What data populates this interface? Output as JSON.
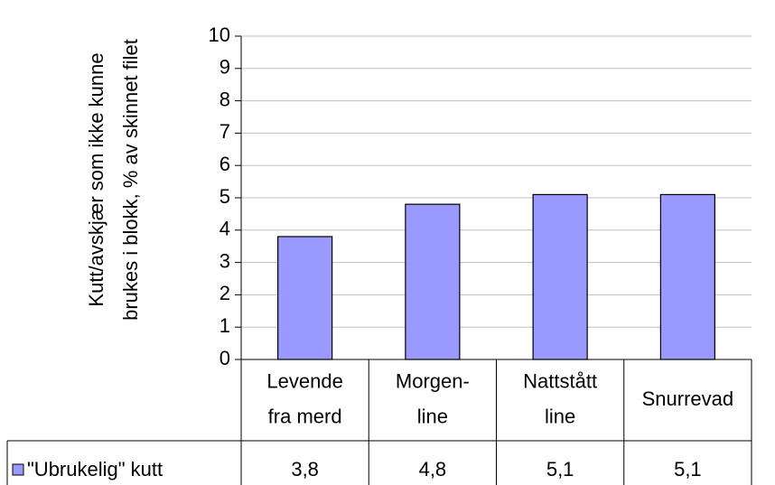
{
  "chart_data": {
    "type": "bar",
    "y_label": [
      "Kutt/avskjær som ikke kunne",
      "brukes i blokk, % av skinnet filet"
    ],
    "categories": [
      [
        "Levende",
        "fra merd"
      ],
      [
        "Morgen-",
        "line"
      ],
      [
        "Nattstått",
        "line"
      ],
      [
        "Snurrevad"
      ]
    ],
    "series": [
      {
        "name": "\"Ubrukelig\" kutt",
        "color": "#9999ff",
        "values": [
          3.8,
          4.8,
          5.1,
          5.1
        ],
        "value_labels": [
          "3,8",
          "4,8",
          "5,1",
          "5,1"
        ]
      }
    ],
    "ylim": [
      0,
      10
    ],
    "yticks": [
      0,
      1,
      2,
      3,
      4,
      5,
      6,
      7,
      8,
      9,
      10
    ],
    "grid": true
  }
}
